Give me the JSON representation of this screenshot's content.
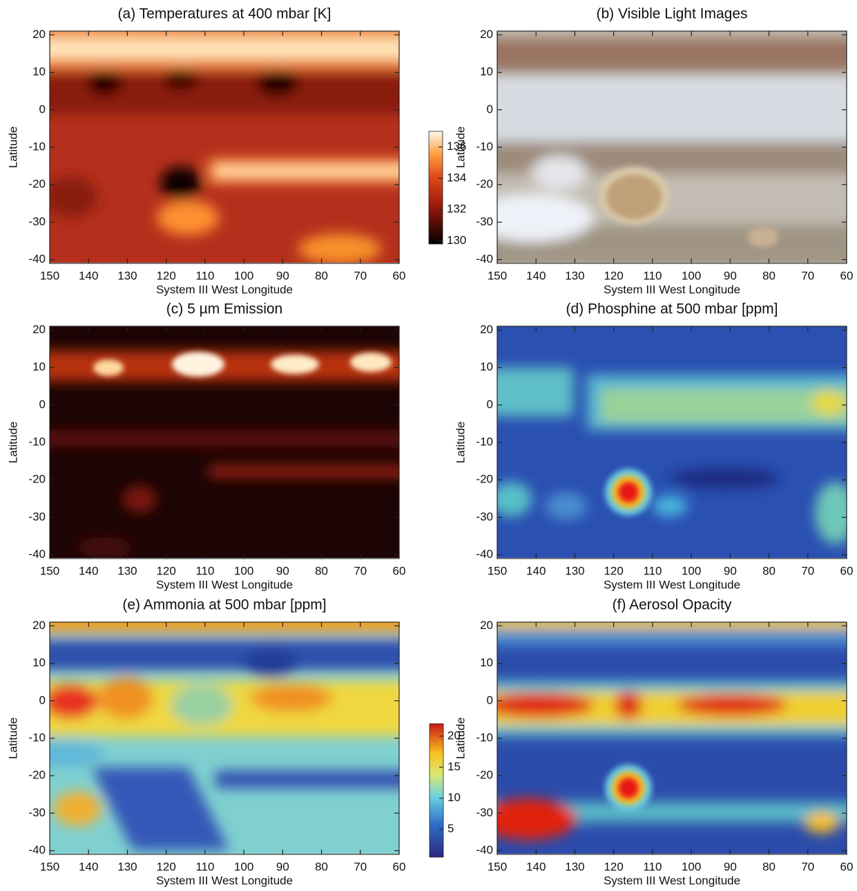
{
  "chart_data": [
    {
      "type": "heatmap",
      "title": "(a) Temperatures at 400 mbar [K]",
      "xlabel": "System III West Longitude",
      "ylabel": "Latitude",
      "xlim": [
        150,
        60
      ],
      "ylim": [
        -41,
        21
      ],
      "xticks": [
        150,
        140,
        130,
        120,
        110,
        100,
        90,
        80,
        70,
        60
      ],
      "yticks": [
        20,
        10,
        0,
        -10,
        -20,
        -30,
        -40
      ],
      "colorbar": {
        "lim": [
          129.8,
          137
        ],
        "ticks": [
          130,
          132,
          134,
          136
        ]
      }
    },
    {
      "type": "heatmap",
      "title": "(b) Visible Light Images",
      "xlabel": "System III West Longitude",
      "ylabel": "Latitude",
      "xlim": [
        150,
        60
      ],
      "ylim": [
        -41,
        21
      ],
      "xticks": [
        150,
        140,
        130,
        120,
        110,
        100,
        90,
        80,
        70,
        60
      ],
      "yticks": [
        20,
        10,
        0,
        -10,
        -20,
        -30,
        -40
      ]
    },
    {
      "type": "heatmap",
      "title": "(c) 5 µm Emission",
      "xlabel": "System III West Longitude",
      "ylabel": "Latitude",
      "xlim": [
        150,
        60
      ],
      "ylim": [
        -41,
        21
      ],
      "xticks": [
        150,
        140,
        130,
        120,
        110,
        100,
        90,
        80,
        70,
        60
      ],
      "yticks": [
        20,
        10,
        0,
        -10,
        -20,
        -30,
        -40
      ]
    },
    {
      "type": "heatmap",
      "title": "(d) Phosphine at 500 mbar [ppm]",
      "xlabel": "System III West Longitude",
      "ylabel": "Latitude",
      "xlim": [
        150,
        60
      ],
      "ylim": [
        -41,
        21
      ],
      "xticks": [
        150,
        140,
        130,
        120,
        110,
        100,
        90,
        80,
        70,
        60
      ],
      "yticks": [
        20,
        10,
        0,
        -10,
        -20,
        -30,
        -40
      ]
    },
    {
      "type": "heatmap",
      "title": "(e) Ammonia at 500 mbar [ppm]",
      "xlabel": "System III West Longitude",
      "ylabel": "Latitude",
      "xlim": [
        150,
        60
      ],
      "ylim": [
        -41,
        21
      ],
      "xticks": [
        150,
        140,
        130,
        120,
        110,
        100,
        90,
        80,
        70,
        60
      ],
      "yticks": [
        20,
        10,
        0,
        -10,
        -20,
        -30,
        -40
      ],
      "colorbar": {
        "lim": [
          0.5,
          22
        ],
        "ticks": [
          5,
          10,
          15,
          20
        ]
      }
    },
    {
      "type": "heatmap",
      "title": "(f) Aerosol Opacity",
      "xlabel": "System III West Longitude",
      "ylabel": "Latitude",
      "xlim": [
        150,
        60
      ],
      "ylim": [
        -41,
        21
      ],
      "xticks": [
        150,
        140,
        130,
        120,
        110,
        100,
        90,
        80,
        70,
        60
      ],
      "yticks": [
        20,
        10,
        0,
        -10,
        -20,
        -30,
        -40
      ]
    }
  ]
}
